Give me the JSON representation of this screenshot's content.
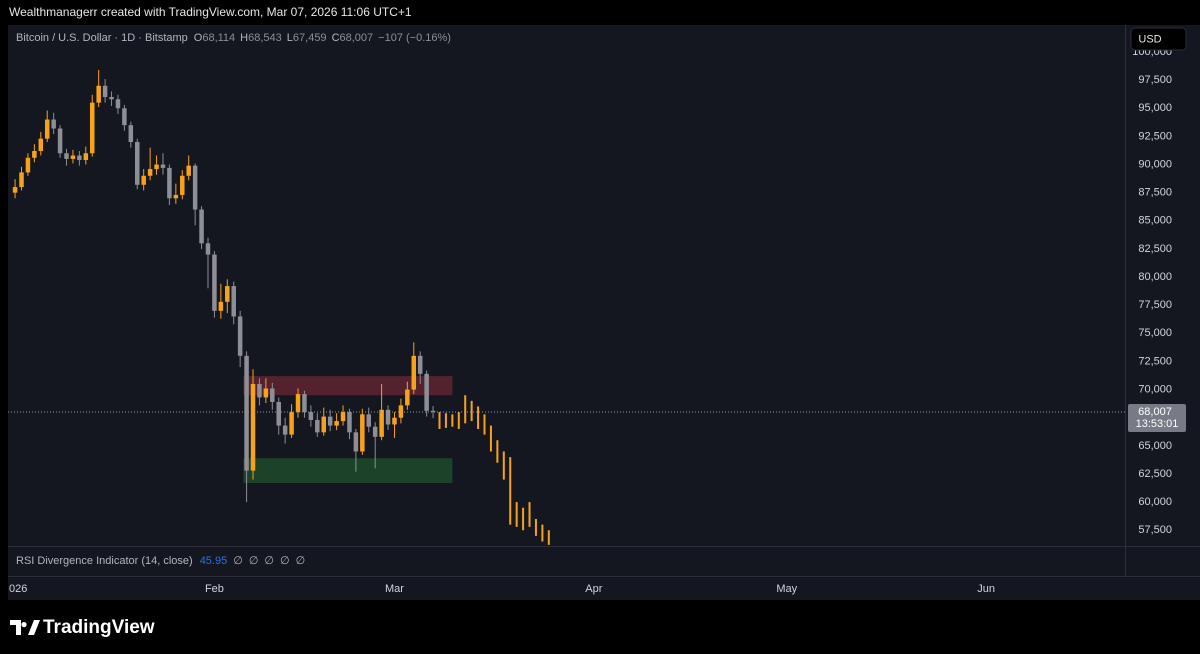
{
  "page": {
    "attribution": "Wealthmanagerr created with TradingView.com, Mar 07, 2026 11:06 UTC+1",
    "logo": "TradingView"
  },
  "chart_data": {
    "type": "candlestick",
    "title": "Bitcoin / U.S. Dollar · 1D · Bitstamp",
    "ohlc_legend": [
      {
        "key": "O",
        "value": "68,114"
      },
      {
        "key": "H",
        "value": "68,543"
      },
      {
        "key": "L",
        "value": "67,459"
      },
      {
        "key": "C",
        "value": "68,007"
      }
    ],
    "change": "−107 (−0.16%)",
    "currency": "USD",
    "last_price_label": "68,007",
    "countdown": "13:53:01",
    "up_color": "#f7a21b",
    "down_color": "#8e8e96",
    "grid": false,
    "x": [
      0,
      1,
      2,
      3,
      4,
      5,
      6,
      7,
      8,
      9,
      10,
      11,
      12,
      13,
      14,
      15,
      16,
      17,
      18,
      19,
      20,
      21,
      22,
      23,
      24,
      25,
      26,
      27,
      28,
      29,
      30,
      31,
      32,
      33,
      34,
      35,
      36,
      37,
      38,
      39,
      40,
      41,
      42,
      43,
      44,
      45,
      46,
      47,
      48,
      49,
      50,
      51,
      52,
      53,
      54,
      55,
      56,
      57,
      58,
      59,
      60,
      61,
      62,
      63,
      64,
      65
    ],
    "open": [
      87500,
      88000,
      89300,
      90600,
      91200,
      92300,
      94000,
      93200,
      91000,
      90500,
      90800,
      90400,
      91000,
      95500,
      97000,
      96000,
      95800,
      95000,
      93500,
      92000,
      88200,
      89000,
      89600,
      90000,
      89700,
      87000,
      87300,
      89000,
      89900,
      86000,
      83000,
      82000,
      77000,
      77800,
      79200,
      76500,
      73000,
      62800,
      70500,
      69300,
      70100,
      68900,
      66800,
      66000,
      68000,
      69600,
      68000,
      67300,
      66200,
      67600,
      66800,
      67200,
      68000,
      66200,
      64500,
      67800,
      66700,
      65800,
      68200,
      66900,
      67500,
      68600,
      70000,
      73000,
      71400,
      68114
    ],
    "high": [
      88700,
      89800,
      91000,
      91800,
      92900,
      94800,
      94600,
      93500,
      91400,
      91300,
      91200,
      91600,
      96200,
      98400,
      97600,
      96500,
      96200,
      95300,
      93800,
      92300,
      89600,
      91500,
      90800,
      91000,
      90000,
      88300,
      89500,
      90800,
      90100,
      86300,
      83500,
      82300,
      79400,
      79800,
      79600,
      77000,
      73400,
      71800,
      71000,
      71000,
      70600,
      69300,
      67500,
      68700,
      70100,
      69900,
      68600,
      67900,
      68400,
      68200,
      67900,
      68600,
      68300,
      66500,
      68300,
      68400,
      67100,
      70500,
      68600,
      68000,
      69200,
      70700,
      74200,
      73400,
      71700,
      68543
    ],
    "low": [
      87000,
      87700,
      89000,
      90200,
      90800,
      92000,
      92700,
      90600,
      89900,
      90100,
      89900,
      90000,
      90700,
      95100,
      95500,
      95200,
      94500,
      93000,
      91500,
      87800,
      87700,
      88600,
      89100,
      89100,
      86400,
      86500,
      86900,
      88600,
      84600,
      82500,
      79000,
      76400,
      76300,
      76800,
      75800,
      72000,
      60000,
      62000,
      68600,
      68800,
      68200,
      66000,
      65200,
      65700,
      67500,
      67500,
      66700,
      65800,
      65900,
      66300,
      66400,
      66800,
      65600,
      62700,
      64200,
      66200,
      63000,
      65500,
      66400,
      65700,
      67000,
      68200,
      69600,
      70500,
      67600,
      67459
    ],
    "close": [
      88000,
      89300,
      90600,
      91200,
      92300,
      94000,
      93200,
      91000,
      90500,
      90800,
      90400,
      91000,
      95500,
      97000,
      96000,
      95800,
      95000,
      93500,
      92000,
      88200,
      89000,
      89600,
      90000,
      89700,
      87000,
      87300,
      89000,
      89900,
      86000,
      83000,
      82000,
      77000,
      77800,
      79200,
      76500,
      73000,
      62800,
      70500,
      69300,
      70100,
      68900,
      66800,
      66000,
      68000,
      69600,
      68000,
      67300,
      66200,
      67600,
      66800,
      67200,
      68000,
      66200,
      64500,
      67800,
      66700,
      65800,
      68200,
      66900,
      67500,
      68600,
      70000,
      73000,
      71400,
      68114,
      68007
    ],
    "projection": {
      "color": "#f7a21b",
      "x": [
        66,
        67,
        68,
        69,
        70,
        71,
        72,
        73,
        74,
        75,
        76,
        77,
        78,
        79,
        80,
        81,
        82,
        83
      ],
      "high": [
        68000,
        67900,
        67800,
        68000,
        69500,
        69000,
        68500,
        67800,
        66800,
        65500,
        64500,
        64000,
        60000,
        59500,
        60000,
        58500,
        58000,
        57500
      ],
      "low": [
        66500,
        66600,
        66700,
        66500,
        67000,
        67200,
        66500,
        66000,
        64500,
        63500,
        62000,
        58000,
        57800,
        57500,
        57800,
        57000,
        56500,
        56200
      ]
    },
    "zones": [
      {
        "color": "#5e2431",
        "top": 71200,
        "bottom": 69500,
        "x0": 35.5,
        "x1": 68
      },
      {
        "color": "#1f4a2d",
        "top": 63900,
        "bottom": 61700,
        "x0": 35.5,
        "x1": 68
      }
    ],
    "xlim": [
      -1.1,
      172.6
    ],
    "xticks": [
      {
        "value": 0,
        "label": "026"
      },
      {
        "value": 31,
        "label": "Feb"
      },
      {
        "value": 59,
        "label": "Mar"
      },
      {
        "value": 90,
        "label": "Apr"
      },
      {
        "value": 120,
        "label": "May"
      },
      {
        "value": 151,
        "label": "Jun"
      }
    ],
    "ylim": [
      56100,
      102400
    ],
    "yticks": [
      {
        "value": 57500,
        "label": "57,500"
      },
      {
        "value": 60000,
        "label": "60,000"
      },
      {
        "value": 62500,
        "label": "62,500"
      },
      {
        "value": 65000,
        "label": "65,000"
      },
      {
        "value": 67500,
        "label": "67,500"
      },
      {
        "value": 70000,
        "label": "70,000"
      },
      {
        "value": 72500,
        "label": "72,500"
      },
      {
        "value": 75000,
        "label": "75,000"
      },
      {
        "value": 77500,
        "label": "77,500"
      },
      {
        "value": 80000,
        "label": "80,000"
      },
      {
        "value": 82500,
        "label": "82,500"
      },
      {
        "value": 85000,
        "label": "85,000"
      },
      {
        "value": 87500,
        "label": "87,500"
      },
      {
        "value": 90000,
        "label": "90,000"
      },
      {
        "value": 92500,
        "label": "92,500"
      },
      {
        "value": 95000,
        "label": "95,000"
      },
      {
        "value": 97500,
        "label": "97,500"
      },
      {
        "value": 100000,
        "label": "100,000"
      }
    ],
    "indicator": {
      "name": "RSI Divergence Indicator (14, close)",
      "value": "45.95",
      "flags": [
        "∅",
        "∅",
        "∅",
        "∅",
        "∅"
      ]
    }
  }
}
